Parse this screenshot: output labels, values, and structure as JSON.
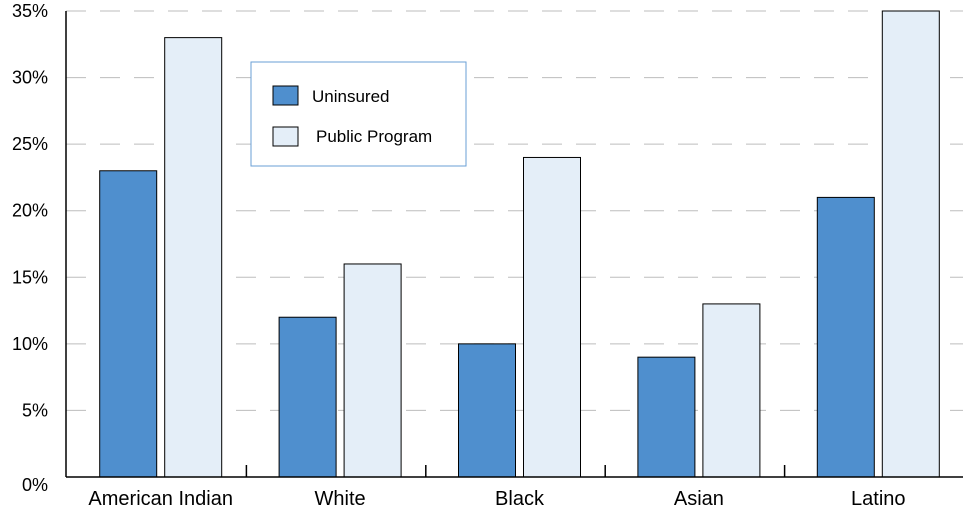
{
  "chart_data": {
    "type": "bar",
    "categories": [
      "American Indian",
      "White",
      "Black",
      "Asian",
      "Latino"
    ],
    "series": [
      {
        "name": "Uninsured",
        "color": "#4f8fce",
        "values": [
          23,
          12,
          10,
          9,
          21
        ]
      },
      {
        "name": "Public Program",
        "color": "#e4eef8",
        "values": [
          33,
          16,
          24,
          13,
          35
        ]
      }
    ],
    "yticks": [
      "0%",
      "5%",
      "10%",
      "15%",
      "20%",
      "25%",
      "30%",
      "35%"
    ],
    "ylim": [
      0,
      35
    ],
    "grid": "dashed horizontal",
    "legend": "top-center"
  }
}
